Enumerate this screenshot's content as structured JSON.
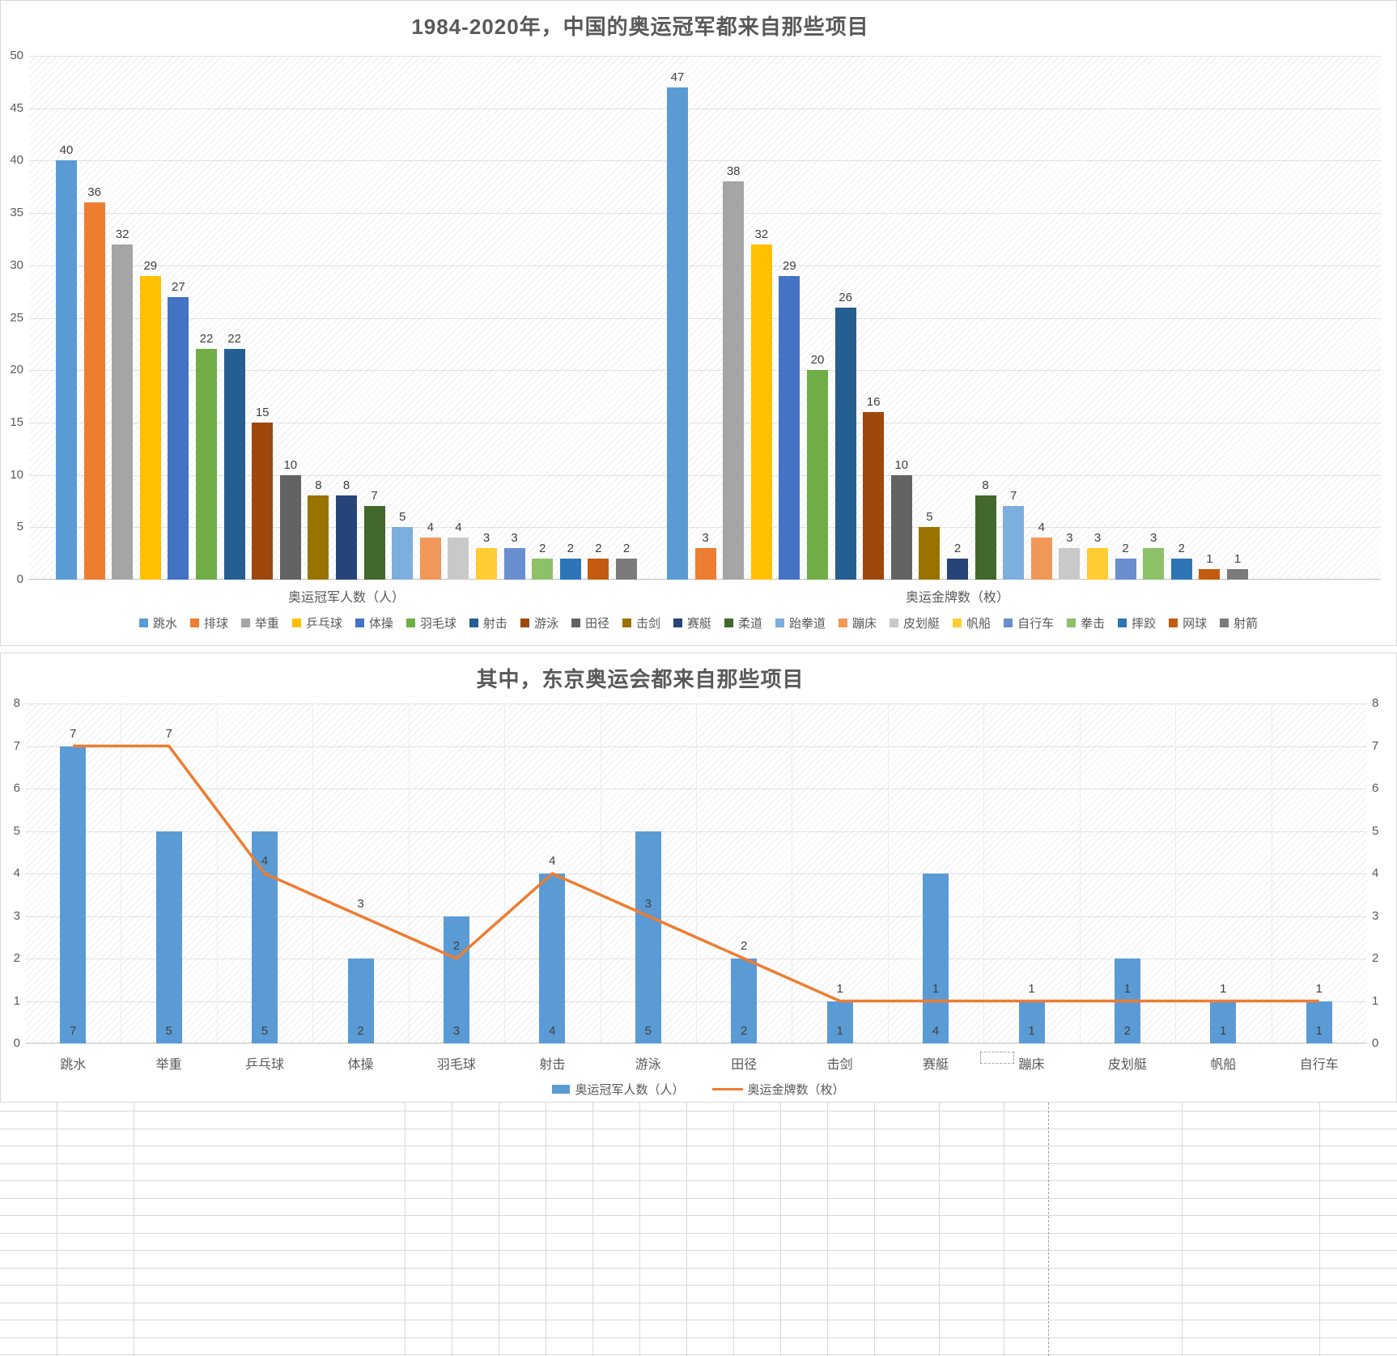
{
  "chart_data": [
    {
      "type": "bar",
      "title": "1984-2020年，中国的奥运冠军都来自那些项目",
      "categories": [
        "奥运冠军人数（人）",
        "奥运金牌数（枚）"
      ],
      "series": [
        {
          "name": "跳水",
          "color": "#5B9BD5",
          "values": [
            40,
            47
          ]
        },
        {
          "name": "排球",
          "color": "#ED7D31",
          "values": [
            36,
            3
          ]
        },
        {
          "name": "举重",
          "color": "#A5A5A5",
          "values": [
            32,
            38
          ]
        },
        {
          "name": "乒乓球",
          "color": "#FFC000",
          "values": [
            29,
            32
          ]
        },
        {
          "name": "体操",
          "color": "#4472C4",
          "values": [
            27,
            29
          ]
        },
        {
          "name": "羽毛球",
          "color": "#70AD47",
          "values": [
            22,
            20
          ]
        },
        {
          "name": "射击",
          "color": "#255E91",
          "values": [
            22,
            26
          ]
        },
        {
          "name": "游泳",
          "color": "#9E480E",
          "values": [
            15,
            16
          ]
        },
        {
          "name": "田径",
          "color": "#636363",
          "values": [
            10,
            10
          ]
        },
        {
          "name": "击剑",
          "color": "#997300",
          "values": [
            8,
            5
          ]
        },
        {
          "name": "赛艇",
          "color": "#264478",
          "values": [
            8,
            2
          ]
        },
        {
          "name": "柔道",
          "color": "#43682B",
          "values": [
            7,
            8
          ]
        },
        {
          "name": "跆拳道",
          "color": "#7CAFDD",
          "values": [
            5,
            7
          ]
        },
        {
          "name": "蹦床",
          "color": "#F1975A",
          "values": [
            4,
            4
          ]
        },
        {
          "name": "皮划艇",
          "color": "#C9C9C9",
          "values": [
            4,
            3
          ]
        },
        {
          "name": "帆船",
          "color": "#FFCD33",
          "values": [
            3,
            3
          ]
        },
        {
          "name": "自行车",
          "color": "#698ED0",
          "values": [
            3,
            2
          ]
        },
        {
          "name": "拳击",
          "color": "#8CC168",
          "values": [
            2,
            3
          ]
        },
        {
          "name": "摔跤",
          "color": "#2E75B6",
          "values": [
            2,
            2
          ]
        },
        {
          "name": "网球",
          "color": "#C55A11",
          "values": [
            2,
            1
          ]
        },
        {
          "name": "射箭",
          "color": "#7B7B7B",
          "values": [
            2,
            1
          ]
        }
      ],
      "ylim": [
        0,
        50
      ],
      "ytick_step": 5,
      "grid": true,
      "legend_position": "bottom",
      "data_labels": true
    },
    {
      "type": "bar+line",
      "title": "其中，东京奥运会都来自那些项目",
      "categories": [
        "跳水",
        "举重",
        "乒乓球",
        "体操",
        "羽毛球",
        "射击",
        "游泳",
        "田径",
        "击剑",
        "赛艇",
        "蹦床",
        "皮划艇",
        "帆船",
        "自行车"
      ],
      "series": [
        {
          "name": "奥运冠军人数（人）",
          "type": "bar",
          "color": "#5B9BD5",
          "values": [
            7,
            5,
            5,
            2,
            3,
            4,
            5,
            2,
            1,
            4,
            1,
            2,
            1,
            1
          ]
        },
        {
          "name": "奥运金牌数（枚）",
          "type": "line",
          "color": "#ED7D31",
          "values": [
            7,
            7,
            4,
            3,
            2,
            4,
            3,
            2,
            1,
            1,
            1,
            1,
            1,
            1
          ]
        }
      ],
      "ylim": [
        0,
        8
      ],
      "ytick_step": 1,
      "secondary_axis": true,
      "grid": true,
      "legend_position": "bottom",
      "data_labels": true
    }
  ],
  "colors": {
    "title_text": "#595959",
    "axis_text": "#595959",
    "data_label_text": "#404040",
    "gridline": "#e2e2e2",
    "sheet_gridline": "#d9d9d9"
  }
}
